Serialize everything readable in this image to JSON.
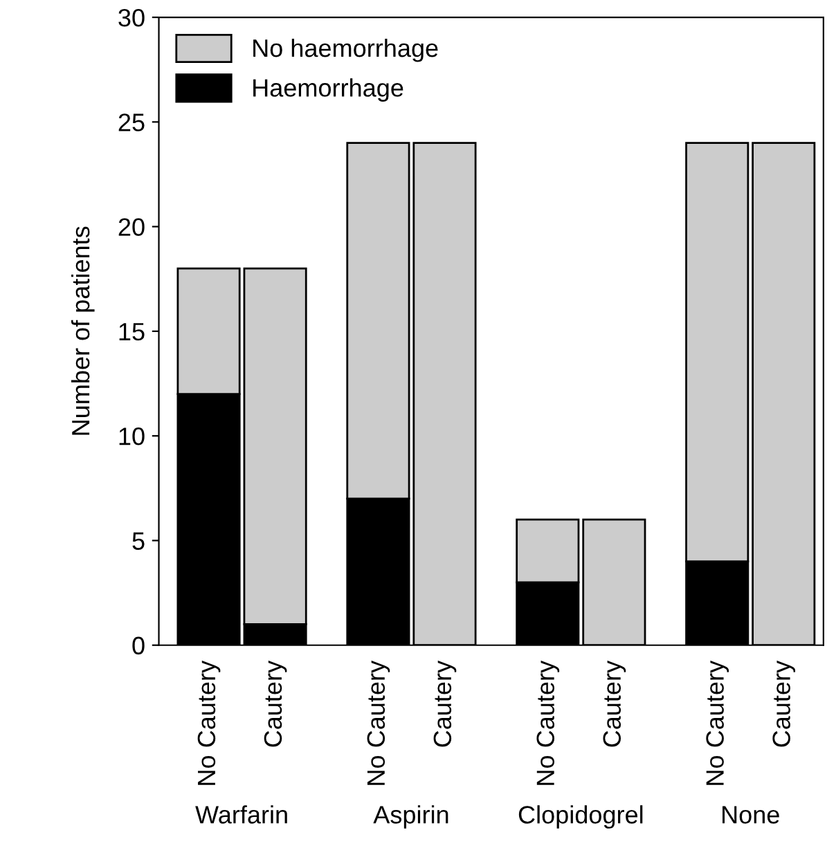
{
  "chart_data": {
    "type": "bar",
    "stacked": true,
    "ylabel": "Number of patients",
    "categories": [
      "No Cautery",
      "Cautery",
      "No Cautery",
      "Cautery",
      "No Cautery",
      "Cautery",
      "No Cautery",
      "Cautery"
    ],
    "annotations": [
      "Warfarin",
      "Aspirin",
      "Clopidogrel",
      "None"
    ],
    "series": [
      {
        "name": "Haemorrhage",
        "color": "#000000",
        "values": [
          12,
          1,
          7,
          0,
          3,
          0,
          4,
          0
        ]
      },
      {
        "name": "No haemorrhage",
        "color": "#cccccc",
        "values": [
          6,
          17,
          17,
          24,
          3,
          6,
          20,
          24
        ]
      }
    ],
    "ylim": [
      0,
      30
    ],
    "yticks": [
      0,
      5,
      10,
      15,
      20,
      25,
      30
    ],
    "legend": "top left",
    "grid": false
  }
}
